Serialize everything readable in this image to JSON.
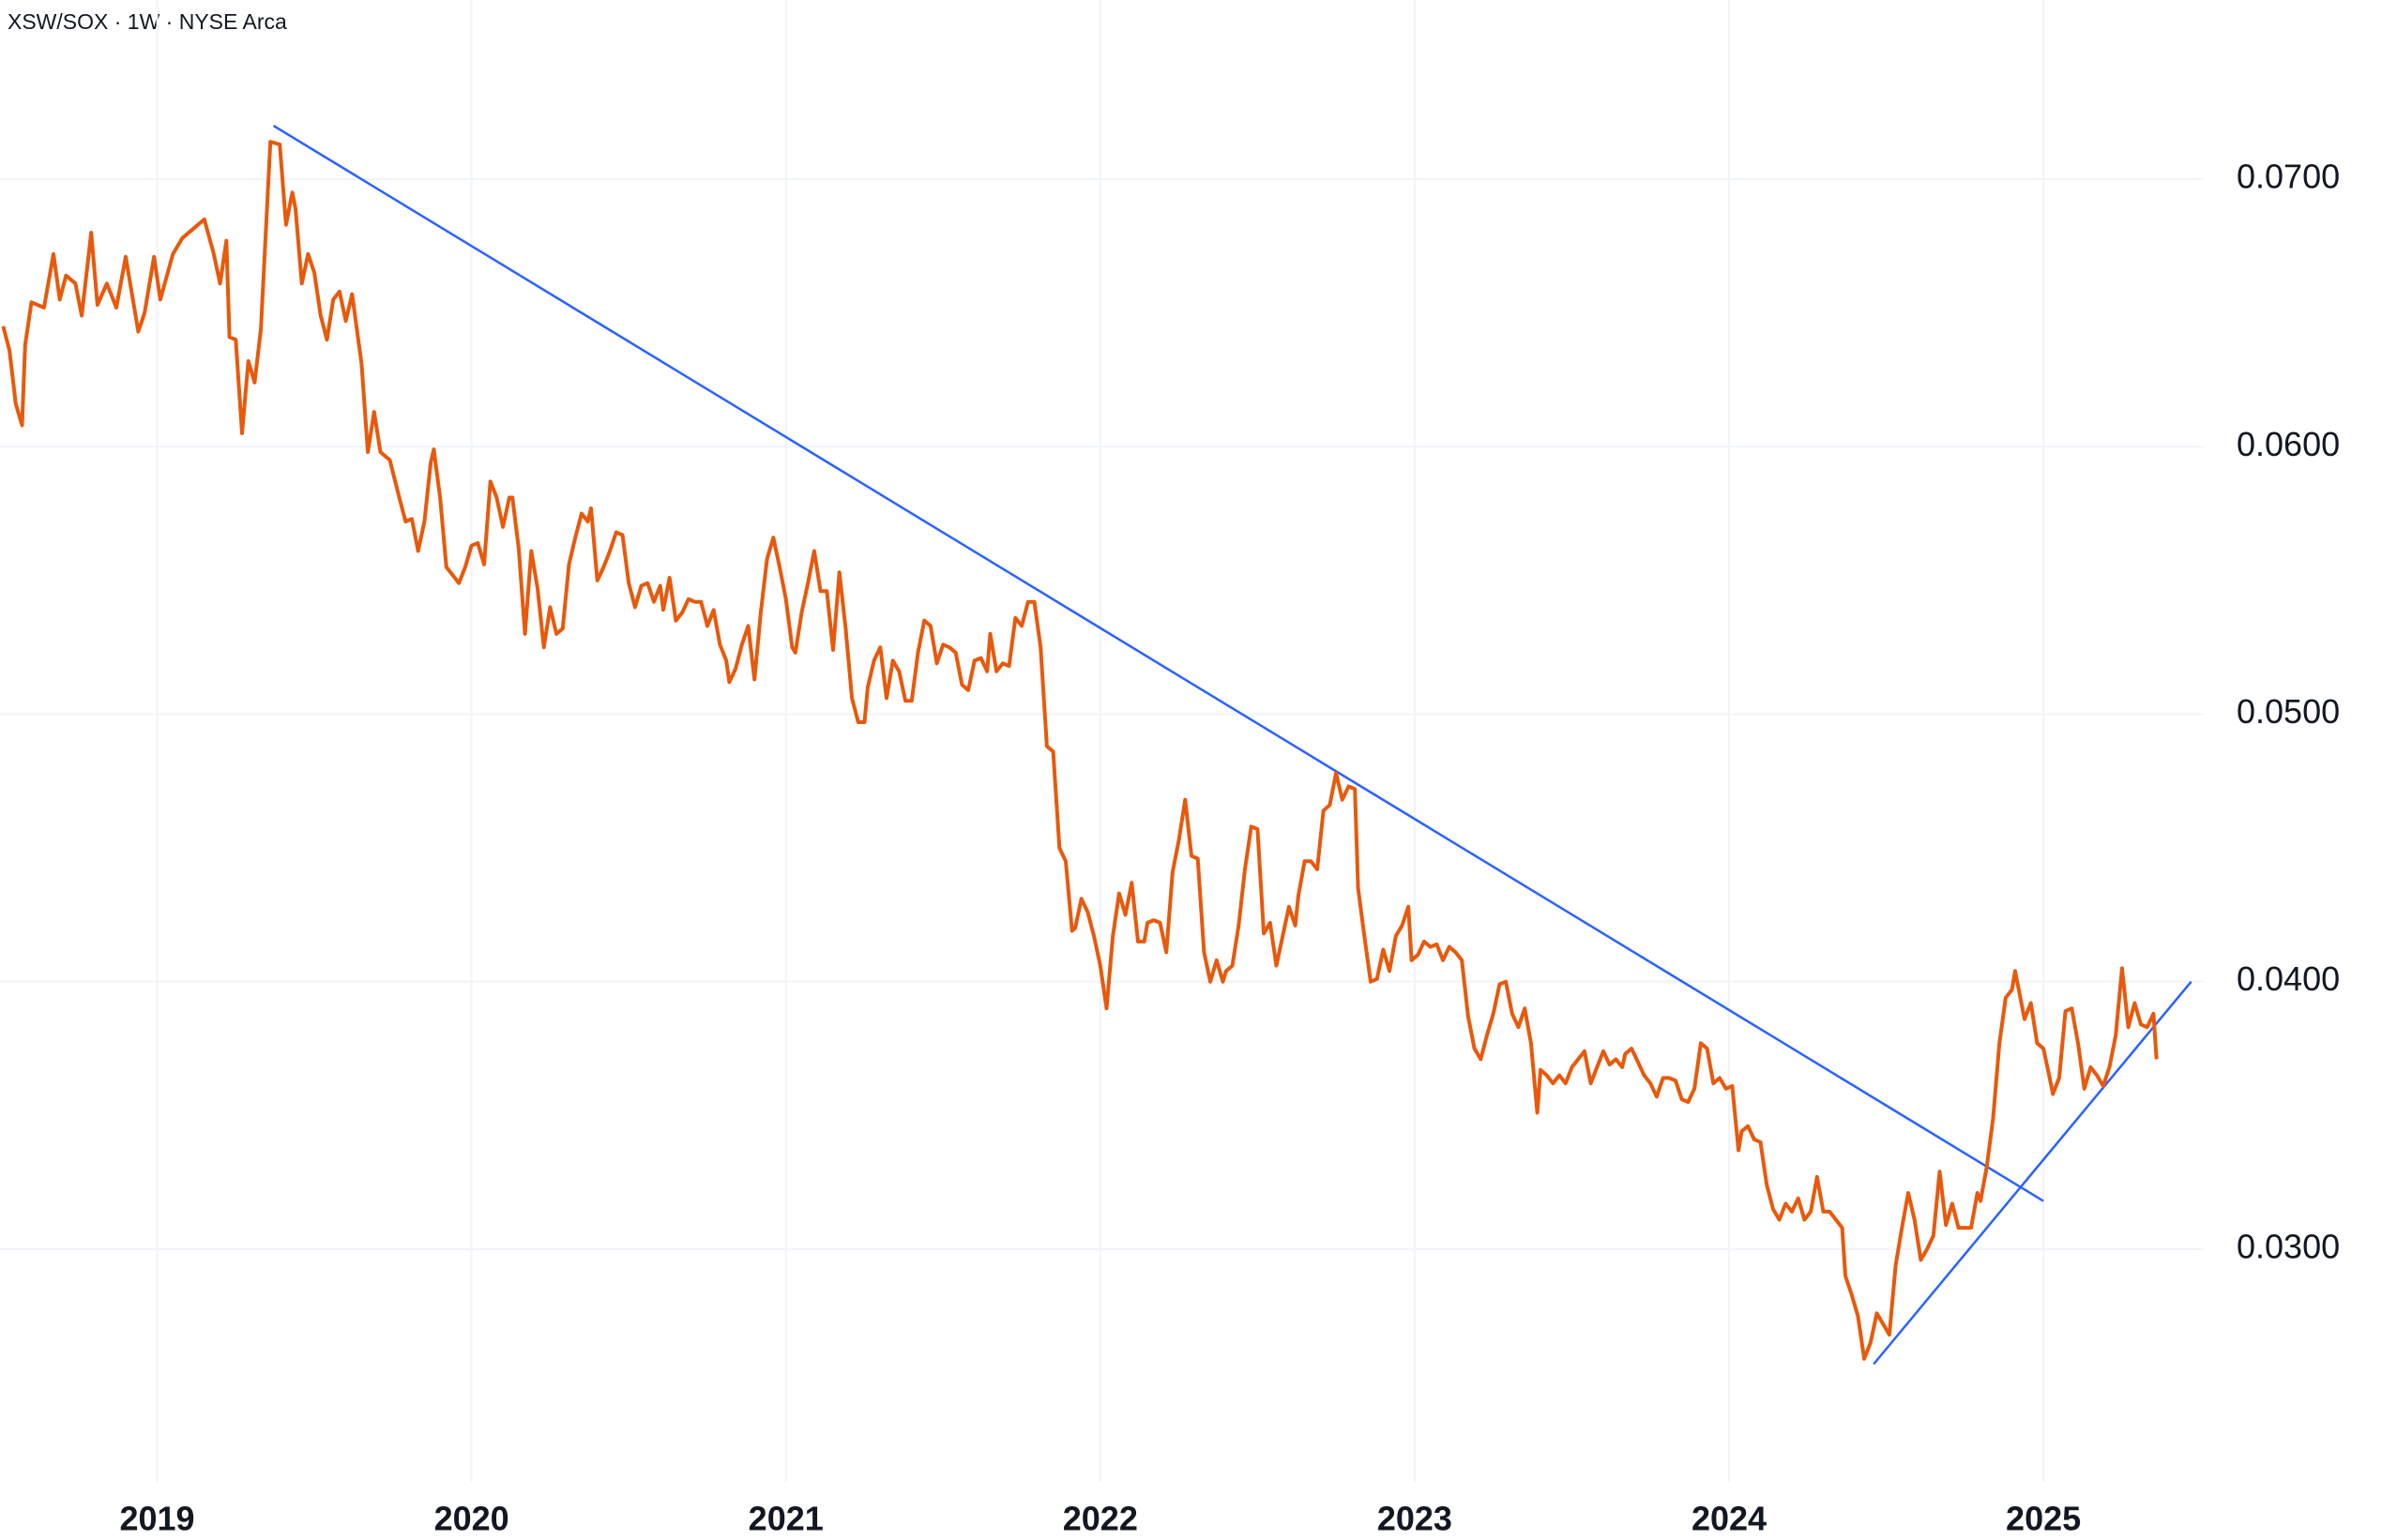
{
  "chart_data": {
    "type": "line",
    "title": "XSW/SOX · 1W · NYSE Arca",
    "color": "#e8590c",
    "grid": true,
    "xlim": [
      2018.5,
      2025.51
    ],
    "xticks": [
      2019,
      2020,
      2021,
      2022,
      2023,
      2024,
      2025
    ],
    "ylim": [
      0.0213,
      0.0767
    ],
    "yticks": [
      {
        "value": 0.03,
        "label": "0.0300"
      },
      {
        "value": 0.04,
        "label": "0.0400"
      },
      {
        "value": 0.05,
        "label": "0.0500"
      },
      {
        "value": 0.06,
        "label": "0.0600"
      },
      {
        "value": 0.07,
        "label": "0.0700"
      }
    ],
    "trend_lines": [
      {
        "color": "#2962ff",
        "x": [
          2019.37,
          2025.0
        ],
        "y": [
          0.072,
          0.0318
        ]
      },
      {
        "color": "#2962ff",
        "x": [
          2024.46,
          2025.47
        ],
        "y": [
          0.0257,
          0.04
        ]
      }
    ],
    "x": [
      2018.51,
      2018.53,
      2018.55,
      2018.57,
      2018.58,
      2018.6,
      2018.64,
      2018.67,
      2018.69,
      2018.71,
      2018.74,
      2018.76,
      2018.79,
      2018.81,
      2018.84,
      2018.87,
      2018.9,
      2018.94,
      2018.96,
      2018.99,
      2019.01,
      2019.05,
      2019.08,
      2019.11,
      2019.15,
      2019.18,
      2019.2,
      2019.22,
      2019.23,
      2019.25,
      2019.27,
      2019.29,
      2019.31,
      2019.33,
      2019.36,
      2019.39,
      2019.41,
      2019.43,
      2019.44,
      2019.46,
      2019.48,
      2019.5,
      2019.52,
      2019.54,
      2019.56,
      2019.58,
      2019.6,
      2019.62,
      2019.65,
      2019.67,
      2019.69,
      2019.71,
      2019.74,
      2019.77,
      2019.79,
      2019.81,
      2019.83,
      2019.85,
      2019.87,
      2019.88,
      2019.9,
      2019.92,
      2019.94,
      2019.96,
      2019.98,
      2020.0,
      2020.02,
      2020.04,
      2020.06,
      2020.08,
      2020.1,
      2020.12,
      2020.13,
      2020.15,
      2020.17,
      2020.19,
      2020.21,
      2020.23,
      2020.25,
      2020.27,
      2020.29,
      2020.31,
      2020.33,
      2020.35,
      2020.37,
      2020.38,
      2020.4,
      2020.42,
      2020.44,
      2020.46,
      2020.48,
      2020.5,
      2020.52,
      2020.54,
      2020.56,
      2020.58,
      2020.6,
      2020.61,
      2020.63,
      2020.65,
      2020.67,
      2020.69,
      2020.71,
      2020.73,
      2020.75,
      2020.77,
      2020.79,
      2020.81,
      2020.82,
      2020.84,
      2020.86,
      2020.88,
      2020.9,
      2020.92,
      2020.94,
      2020.96,
      2020.98,
      2021.0,
      2021.02,
      2021.03,
      2021.05,
      2021.07,
      2021.09,
      2021.11,
      2021.13,
      2021.15,
      2021.17,
      2021.19,
      2021.21,
      2021.23,
      2021.25,
      2021.26,
      2021.28,
      2021.3,
      2021.32,
      2021.34,
      2021.36,
      2021.38,
      2021.4,
      2021.42,
      2021.44,
      2021.46,
      2021.48,
      2021.5,
      2021.52,
      2021.54,
      2021.56,
      2021.58,
      2021.6,
      2021.62,
      2021.64,
      2021.65,
      2021.67,
      2021.69,
      2021.71,
      2021.73,
      2021.75,
      2021.77,
      2021.79,
      2021.81,
      2021.83,
      2021.85,
      2021.87,
      2021.89,
      2021.91,
      2021.92,
      2021.94,
      2021.96,
      2021.98,
      2022.0,
      2022.02,
      2022.04,
      2022.06,
      2022.08,
      2022.1,
      2022.12,
      2022.14,
      2022.15,
      2022.17,
      2022.19,
      2022.21,
      2022.23,
      2022.25,
      2022.27,
      2022.29,
      2022.31,
      2022.33,
      2022.35,
      2022.37,
      2022.39,
      2022.4,
      2022.42,
      2022.44,
      2022.46,
      2022.48,
      2022.5,
      2022.52,
      2022.54,
      2022.56,
      2022.58,
      2022.6,
      2022.62,
      2022.63,
      2022.65,
      2022.67,
      2022.69,
      2022.71,
      2022.73,
      2022.75,
      2022.77,
      2022.79,
      2022.81,
      2022.82,
      2022.84,
      2022.86,
      2022.88,
      2022.9,
      2022.92,
      2022.94,
      2022.96,
      2022.98,
      2022.99,
      2023.01,
      2023.03,
      2023.05,
      2023.07,
      2023.09,
      2023.11,
      2023.13,
      2023.15,
      2023.17,
      2023.19,
      2023.21,
      2023.23,
      2023.25,
      2023.27,
      2023.29,
      2023.31,
      2023.33,
      2023.35,
      2023.37,
      2023.39,
      2023.4,
      2023.42,
      2023.44,
      2023.46,
      2023.48,
      2023.5,
      2023.52,
      2023.54,
      2023.56,
      2023.58,
      2023.6,
      2023.62,
      2023.64,
      2023.66,
      2023.67,
      2023.69,
      2023.71,
      2023.73,
      2023.75,
      2023.77,
      2023.79,
      2023.81,
      2023.83,
      2023.85,
      2023.87,
      2023.89,
      2023.91,
      2023.93,
      2023.95,
      2023.97,
      2023.99,
      2024.01,
      2024.03,
      2024.04,
      2024.06,
      2024.08,
      2024.1,
      2024.12,
      2024.14,
      2024.16,
      2024.18,
      2024.2,
      2024.22,
      2024.24,
      2024.26,
      2024.28,
      2024.3,
      2024.32,
      2024.34,
      2024.36,
      2024.37,
      2024.39,
      2024.41,
      2024.43,
      2024.45,
      2024.47,
      2024.49,
      2024.51,
      2024.53,
      2024.55,
      2024.57,
      2024.59,
      2024.61,
      2024.63,
      2024.65,
      2024.67,
      2024.69,
      2024.71,
      2024.73,
      2024.75,
      2024.77,
      2024.79,
      2024.8,
      2024.82,
      2024.84,
      2024.86,
      2024.88,
      2024.9,
      2024.91,
      2024.94,
      2024.96,
      2024.98,
      2025.0,
      2025.02,
      2025.03,
      2025.05,
      2025.07,
      2025.09,
      2025.11,
      2025.13,
      2025.15,
      2025.17,
      2025.19,
      2025.21,
      2025.23,
      2025.25,
      2025.27,
      2025.29,
      2025.31,
      2025.33,
      2025.35,
      2025.36
    ],
    "values": [
      0.0645,
      0.0636,
      0.0616,
      0.0608,
      0.0638,
      0.0654,
      0.0652,
      0.0672,
      0.0655,
      0.0664,
      0.0661,
      0.0649,
      0.068,
      0.0653,
      0.0661,
      0.0652,
      0.0671,
      0.0643,
      0.065,
      0.0671,
      0.0655,
      0.0672,
      0.0678,
      0.0681,
      0.0685,
      0.0672,
      0.0661,
      0.0677,
      0.0641,
      0.064,
      0.0605,
      0.0632,
      0.0624,
      0.0644,
      0.0714,
      0.0713,
      0.0683,
      0.0695,
      0.0689,
      0.0661,
      0.0672,
      0.0665,
      0.0649,
      0.064,
      0.0655,
      0.0658,
      0.0647,
      0.0657,
      0.0631,
      0.0598,
      0.0613,
      0.0598,
      0.0595,
      0.0581,
      0.0572,
      0.0573,
      0.0561,
      0.0572,
      0.0594,
      0.0599,
      0.0581,
      0.0555,
      0.0552,
      0.0549,
      0.0555,
      0.0563,
      0.0564,
      0.0556,
      0.0587,
      0.0581,
      0.057,
      0.0581,
      0.0581,
      0.0562,
      0.053,
      0.0561,
      0.0547,
      0.0525,
      0.054,
      0.053,
      0.0532,
      0.0556,
      0.0566,
      0.0575,
      0.0572,
      0.0577,
      0.055,
      0.0555,
      0.0561,
      0.0568,
      0.0567,
      0.0549,
      0.054,
      0.0548,
      0.0549,
      0.0542,
      0.0548,
      0.0539,
      0.0551,
      0.0535,
      0.0538,
      0.0543,
      0.0542,
      0.0542,
      0.0533,
      0.0539,
      0.0526,
      0.052,
      0.0512,
      0.0517,
      0.0526,
      0.0533,
      0.0513,
      0.0538,
      0.0558,
      0.0566,
      0.0555,
      0.0543,
      0.0525,
      0.0523,
      0.0538,
      0.0549,
      0.0561,
      0.0546,
      0.0546,
      0.0524,
      0.0553,
      0.0532,
      0.0506,
      0.0497,
      0.0497,
      0.051,
      0.052,
      0.0525,
      0.0506,
      0.052,
      0.0516,
      0.0505,
      0.0505,
      0.0523,
      0.0535,
      0.0533,
      0.0519,
      0.0526,
      0.0525,
      0.0523,
      0.0511,
      0.0509,
      0.052,
      0.0521,
      0.0516,
      0.053,
      0.0516,
      0.0519,
      0.0518,
      0.0536,
      0.0533,
      0.0542,
      0.0542,
      0.0525,
      0.0488,
      0.0486,
      0.045,
      0.0445,
      0.0419,
      0.042,
      0.0431,
      0.0426,
      0.0417,
      0.0406,
      0.039,
      0.0417,
      0.0433,
      0.0425,
      0.0437,
      0.0415,
      0.0415,
      0.0422,
      0.0423,
      0.0422,
      0.0411,
      0.0441,
      0.0453,
      0.0468,
      0.0447,
      0.0446,
      0.0411,
      0.04,
      0.0408,
      0.04,
      0.0404,
      0.0406,
      0.0421,
      0.0442,
      0.0458,
      0.0457,
      0.0418,
      0.0422,
      0.0406,
      0.0417,
      0.0428,
      0.0421,
      0.0432,
      0.0445,
      0.0445,
      0.0442,
      0.0464,
      0.0466,
      0.0478,
      0.0468,
      0.0473,
      0.0472,
      0.0435,
      0.0417,
      0.04,
      0.0401,
      0.0412,
      0.0404,
      0.0417,
      0.0421,
      0.0428,
      0.0408,
      0.041,
      0.0415,
      0.0413,
      0.0414,
      0.0408,
      0.0413,
      0.0411,
      0.0408,
      0.0387,
      0.0375,
      0.0371,
      0.038,
      0.0388,
      0.0399,
      0.04,
      0.0388,
      0.0383,
      0.039,
      0.0377,
      0.0351,
      0.0367,
      0.0365,
      0.0362,
      0.0365,
      0.0362,
      0.0368,
      0.0371,
      0.0374,
      0.0362,
      0.0368,
      0.0374,
      0.0369,
      0.0371,
      0.0368,
      0.0373,
      0.0375,
      0.037,
      0.0365,
      0.0362,
      0.0357,
      0.0364,
      0.0364,
      0.0363,
      0.0356,
      0.0355,
      0.036,
      0.0377,
      0.0375,
      0.0362,
      0.0364,
      0.036,
      0.0361,
      0.0337,
      0.0344,
      0.0346,
      0.0341,
      0.034,
      0.0324,
      0.0315,
      0.0311,
      0.0317,
      0.0314,
      0.0319,
      0.0311,
      0.0314,
      0.0327,
      0.0314,
      0.0314,
      0.0311,
      0.0308,
      0.029,
      0.0283,
      0.0275,
      0.0259,
      0.0265,
      0.0276,
      0.0272,
      0.0268,
      0.0294,
      0.0308,
      0.0321,
      0.0311,
      0.0296,
      0.03,
      0.0305,
      0.0329,
      0.0309,
      0.0317,
      0.0308,
      0.0308,
      0.0308,
      0.0321,
      0.0318,
      0.0331,
      0.0349,
      0.0377,
      0.0394,
      0.0397,
      0.0404,
      0.0386,
      0.0392,
      0.0377,
      0.0375,
      0.0364,
      0.0358,
      0.0364,
      0.0389,
      0.039,
      0.0377,
      0.036,
      0.0368,
      0.0365,
      0.0361,
      0.0368,
      0.038,
      0.0405,
      0.0383,
      0.0392,
      0.0384,
      0.0383,
      0.0388,
      0.0371
    ]
  }
}
